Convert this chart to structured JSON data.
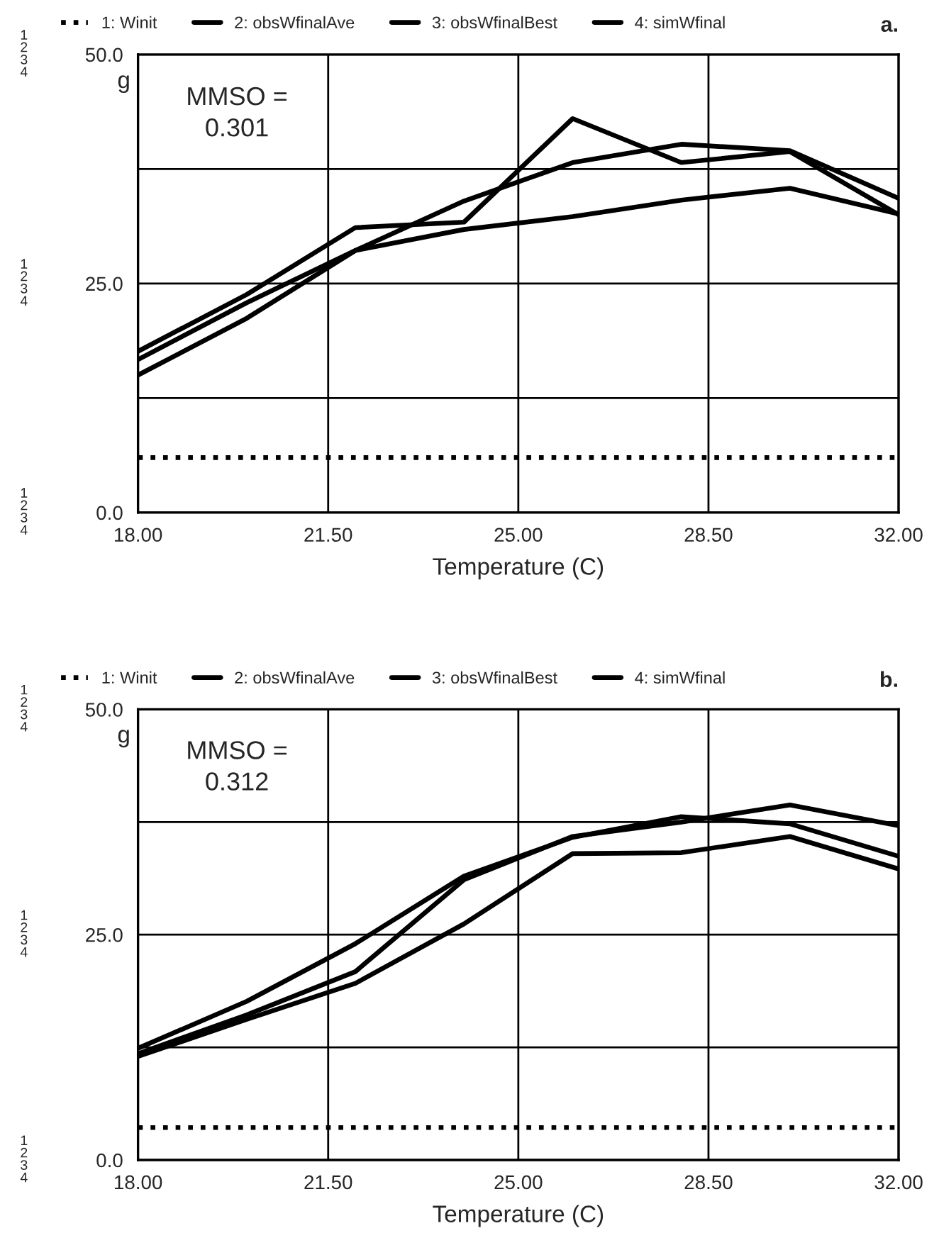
{
  "chart_data": [
    {
      "type": "line",
      "xlabel": "Temperature (C)",
      "ylabel": "g",
      "annotations": [
        "a.",
        "MMSO =\n0.301",
        "1\n2\n3\n4",
        "1\n2\n3\n4",
        "1\n2\n3\n4"
      ],
      "x": [
        18,
        20,
        22,
        24,
        26,
        28,
        30,
        32
      ],
      "series": [
        {
          "name": "1: Winit",
          "color": "#000000",
          "line_style": "dotted",
          "values": [
            6,
            6,
            6,
            6,
            6,
            6,
            6,
            6
          ]
        },
        {
          "name": "2: obsWfinalAve",
          "color": "#000000",
          "values": [
            16.7,
            22.9,
            28.6,
            30.9,
            32.3,
            34.1,
            35.4,
            32.6
          ]
        },
        {
          "name": "3: obsWfinalBest",
          "color": "#000000",
          "values": [
            17.6,
            23.8,
            31.1,
            31.7,
            43.0,
            38.2,
            39.4,
            32.5
          ]
        },
        {
          "name": "4: simWfinal",
          "color": "#000000",
          "values": [
            15.0,
            21.2,
            28.6,
            34.0,
            38.2,
            40.2,
            39.5,
            34.3
          ]
        }
      ],
      "xlim": [
        18,
        32
      ],
      "ylim": [
        0,
        50
      ],
      "xticks": [
        {
          "value": 18,
          "label": "18.00"
        },
        {
          "value": 21.5,
          "label": "21.50"
        },
        {
          "value": 25,
          "label": "25.00"
        },
        {
          "value": 28.5,
          "label": "28.50"
        },
        {
          "value": 32,
          "label": "32.00"
        }
      ],
      "yticks": [
        {
          "value": 0,
          "label": "0.0"
        },
        {
          "value": 12.5,
          "label": null
        },
        {
          "value": 25,
          "label": "25.0"
        },
        {
          "value": 37.5,
          "label": null
        },
        {
          "value": 50,
          "label": "50.0"
        }
      ],
      "grid": true,
      "legend": "top"
    },
    {
      "type": "line",
      "xlabel": "Temperature (C)",
      "ylabel": "g",
      "annotations": [
        "b.",
        "MMSO =\n0.312",
        "1\n2\n3\n4",
        "1\n2\n3\n4",
        "1\n2\n3\n4"
      ],
      "x": [
        18,
        20,
        22,
        24,
        26,
        28,
        30,
        32
      ],
      "series": [
        {
          "name": "1: Winit",
          "color": "#000000",
          "line_style": "dotted",
          "values": [
            3.6,
            3.6,
            3.6,
            3.6,
            3.6,
            3.6,
            3.6,
            3.6
          ]
        },
        {
          "name": "2: obsWfinalAve",
          "color": "#000000",
          "values": [
            11.5,
            15.6,
            19.6,
            26.2,
            34.0,
            34.1,
            35.9,
            32.3
          ]
        },
        {
          "name": "3: obsWfinalBest",
          "color": "#000000",
          "values": [
            11.8,
            16.1,
            20.9,
            31.1,
            35.9,
            37.5,
            39.4,
            37.1
          ]
        },
        {
          "name": "4: simWfinal",
          "color": "#000000",
          "values": [
            12.4,
            17.6,
            24.0,
            31.5,
            35.8,
            38.1,
            37.3,
            33.7
          ]
        }
      ],
      "xlim": [
        18,
        32
      ],
      "ylim": [
        0,
        50
      ],
      "xticks": [
        {
          "value": 18,
          "label": "18.00"
        },
        {
          "value": 21.5,
          "label": "21.50"
        },
        {
          "value": 25,
          "label": "25.00"
        },
        {
          "value": 28.5,
          "label": "28.50"
        },
        {
          "value": 32,
          "label": "32.00"
        }
      ],
      "yticks": [
        {
          "value": 0,
          "label": "0.0"
        },
        {
          "value": 12.5,
          "label": null
        },
        {
          "value": 25,
          "label": "25.0"
        },
        {
          "value": 37.5,
          "label": null
        },
        {
          "value": 50,
          "label": "50.0"
        }
      ],
      "grid": true,
      "legend": "top"
    }
  ]
}
